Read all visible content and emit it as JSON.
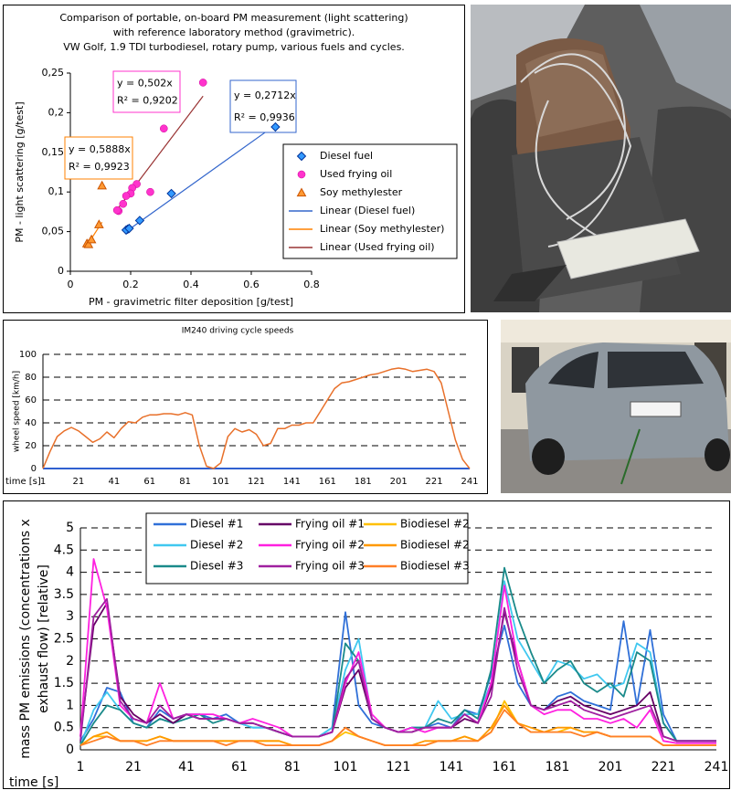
{
  "chart_data": [
    {
      "type": "scatter",
      "title": [
        "Comparison of portable, on-board PM measurement (light scattering)",
        "with reference laboratory method (gravimetric).",
        "VW Golf, 1.9 TDI turbodiesel, rotary pump, various fuels and cycles."
      ],
      "xlabel": "PM - gravimetric filter deposition [g/test]",
      "ylabel": "PM - light scattering [g/test]",
      "xlim": [
        0,
        0.8
      ],
      "xticks": [
        0,
        0.2,
        0.4,
        0.6,
        0.8
      ],
      "ylim": [
        0,
        0.25
      ],
      "yticks": [
        0,
        {
          "value": 0.05,
          "label": "0,05"
        },
        {
          "value": 0.1,
          "label": "0,1"
        },
        {
          "value": 0.15,
          "label": "0,15"
        },
        {
          "value": 0.2,
          "label": "0,2"
        },
        {
          "value": 0.25,
          "label": "0,25"
        }
      ],
      "grid": false,
      "legend": "right",
      "series": [
        {
          "name": "Diesel fuel",
          "color": "#3399ff",
          "marker": "diamond",
          "x": [
            0.68,
            0.335,
            0.23,
            0.19,
            0.185,
            0.195
          ],
          "y": [
            0.182,
            0.098,
            0.064,
            0.053,
            0.052,
            0.054
          ]
        },
        {
          "name": "Used frying oil",
          "color": "#ff33cc",
          "marker": "circle",
          "x": [
            0.44,
            0.31,
            0.265,
            0.22,
            0.205,
            0.2,
            0.185,
            0.16,
            0.155,
            0.175
          ],
          "y": [
            0.238,
            0.18,
            0.1,
            0.11,
            0.105,
            0.098,
            0.095,
            0.076,
            0.077,
            0.085
          ]
        },
        {
          "name": "Soy methylester",
          "color": "#ff9933",
          "marker": "triangle",
          "x": [
            0.055,
            0.06,
            0.07,
            0.095,
            0.105
          ],
          "y": [
            0.035,
            0.034,
            0.04,
            0.059,
            0.108
          ]
        }
      ],
      "trendlines": [
        {
          "name": "Linear (Diesel fuel)",
          "color": "#3366cc",
          "box_color": "#3366cc",
          "slope": 0.2712,
          "xlim": [
            0.185,
            0.68
          ],
          "equation": "y = 0,2712x",
          "r_squared": "R² = 0,9936"
        },
        {
          "name": "Linear (Soy methylester)",
          "color": "#ff8000",
          "box_color": "#ff8000",
          "slope": 0.5888,
          "xlim": [
            0.055,
            0.105
          ],
          "equation": "y = 0,5888x",
          "r_squared": "R² = 0,9923"
        },
        {
          "name": "Linear (Used frying oil)",
          "color": "#993333",
          "box_color": "#ff33cc",
          "slope": 0.502,
          "xlim": [
            0.155,
            0.44
          ],
          "equation": "y = 0,502x",
          "r_squared": "R² = 0,9202"
        }
      ]
    },
    {
      "type": "line",
      "title": "IM240 driving cycle speeds",
      "xlabel": "time [s]",
      "ylabel": "wheel speed [km/h]",
      "xlim": [
        1,
        241
      ],
      "xticks": [
        1,
        21,
        41,
        61,
        81,
        101,
        121,
        141,
        161,
        181,
        201,
        221,
        241
      ],
      "ylim": [
        0,
        100
      ],
      "yticks": [
        0,
        20,
        40,
        60,
        80,
        100
      ],
      "grid": true,
      "x": [
        1,
        5,
        9,
        13,
        17,
        21,
        25,
        29,
        33,
        37,
        41,
        45,
        49,
        53,
        57,
        61,
        65,
        69,
        73,
        77,
        81,
        85,
        89,
        93,
        97,
        101,
        105,
        109,
        113,
        117,
        121,
        125,
        129,
        133,
        137,
        141,
        145,
        149,
        153,
        157,
        161,
        165,
        169,
        173,
        177,
        181,
        185,
        189,
        193,
        197,
        201,
        205,
        209,
        213,
        217,
        221,
        225,
        229,
        233,
        237,
        241
      ],
      "series": [
        {
          "color": "#e8702a",
          "values": [
            0,
            15,
            28,
            33,
            36,
            33,
            28,
            23,
            26,
            32,
            27,
            35,
            41,
            40,
            45,
            47,
            47,
            48,
            48,
            47,
            49,
            47,
            20,
            2,
            0,
            5,
            28,
            35,
            32,
            34,
            30,
            20,
            22,
            35,
            35,
            38,
            38,
            40,
            40,
            50,
            60,
            70,
            75,
            76,
            78,
            80,
            82,
            83,
            85,
            87,
            88,
            87,
            85,
            86,
            87,
            85,
            75,
            50,
            25,
            8,
            0
          ]
        }
      ]
    },
    {
      "type": "line",
      "xlabel": "time [s]",
      "ylabel": [
        "mass PM emissions (concentrations x",
        "exhaust flow) [relative]"
      ],
      "xlim": [
        1,
        241
      ],
      "xticks": [
        1,
        21,
        41,
        61,
        81,
        101,
        121,
        141,
        161,
        181,
        201,
        221,
        241
      ],
      "ylim": [
        0,
        5
      ],
      "yticks": [
        0,
        0.5,
        1,
        1.5,
        2,
        2.5,
        3,
        3.5,
        4,
        4.5,
        5
      ],
      "grid": true,
      "legend": "top",
      "x": [
        1,
        6,
        11,
        16,
        21,
        26,
        31,
        36,
        41,
        46,
        51,
        56,
        61,
        66,
        71,
        76,
        81,
        86,
        91,
        96,
        101,
        106,
        111,
        116,
        121,
        126,
        131,
        136,
        141,
        146,
        151,
        156,
        161,
        166,
        171,
        176,
        181,
        186,
        191,
        196,
        201,
        206,
        211,
        216,
        221,
        226,
        231,
        236,
        241
      ],
      "series": [
        {
          "name": "Diesel #1",
          "color": "#3070d8",
          "values": [
            0.2,
            0.7,
            1.4,
            1.3,
            0.6,
            0.5,
            0.9,
            0.7,
            0.8,
            0.8,
            0.7,
            0.8,
            0.6,
            0.5,
            0.5,
            0.4,
            0.3,
            0.3,
            0.3,
            0.5,
            3.1,
            1.0,
            0.6,
            0.5,
            0.4,
            0.5,
            0.5,
            0.6,
            0.5,
            0.9,
            0.8,
            1.7,
            2.8,
            1.5,
            1.0,
            0.9,
            1.2,
            1.3,
            1.1,
            1.0,
            0.9,
            2.9,
            1.0,
            2.7,
            0.8,
            0.2,
            0.2,
            0.2,
            0.2
          ]
        },
        {
          "name": "Diesel #2",
          "color": "#40c8f0",
          "values": [
            0.1,
            0.9,
            1.3,
            0.9,
            0.6,
            0.5,
            0.7,
            0.6,
            0.8,
            0.7,
            0.7,
            0.7,
            0.6,
            0.5,
            0.5,
            0.4,
            0.3,
            0.3,
            0.3,
            0.5,
            1.8,
            2.5,
            0.7,
            0.5,
            0.4,
            0.5,
            0.5,
            1.1,
            0.7,
            0.8,
            0.8,
            1.5,
            3.8,
            2.5,
            2.0,
            1.5,
            2.0,
            1.9,
            1.6,
            1.7,
            1.4,
            1.5,
            2.4,
            2.2,
            0.6,
            0.2,
            0.2,
            0.2,
            0.2
          ]
        },
        {
          "name": "Diesel #3",
          "color": "#1a8a8a",
          "values": [
            0.1,
            0.6,
            1.0,
            0.9,
            0.6,
            0.5,
            0.7,
            0.6,
            0.7,
            0.8,
            0.6,
            0.7,
            0.6,
            0.6,
            0.5,
            0.4,
            0.3,
            0.3,
            0.3,
            0.4,
            2.4,
            2.0,
            0.7,
            0.5,
            0.4,
            0.5,
            0.5,
            0.7,
            0.6,
            0.9,
            0.7,
            1.8,
            4.1,
            3.0,
            2.2,
            1.5,
            1.8,
            2.0,
            1.5,
            1.3,
            1.5,
            1.2,
            2.2,
            2.0,
            0.6,
            0.2,
            0.2,
            0.2,
            0.2
          ]
        },
        {
          "name": "Frying oil #1",
          "color": "#660066",
          "values": [
            0.3,
            2.8,
            3.3,
            1.2,
            0.8,
            0.6,
            0.8,
            0.6,
            0.8,
            0.7,
            0.7,
            0.7,
            0.6,
            0.6,
            0.5,
            0.4,
            0.3,
            0.3,
            0.3,
            0.4,
            1.4,
            1.8,
            0.7,
            0.5,
            0.4,
            0.4,
            0.5,
            0.5,
            0.5,
            0.7,
            0.6,
            1.4,
            3.1,
            2.0,
            1.0,
            0.9,
            1.1,
            1.2,
            1.0,
            0.9,
            0.8,
            0.9,
            1.0,
            1.3,
            0.3,
            0.2,
            0.2,
            0.2,
            0.2
          ]
        },
        {
          "name": "Frying oil #2",
          "color": "#ff20e0",
          "values": [
            0.3,
            4.3,
            3.2,
            1.0,
            0.7,
            0.6,
            1.5,
            0.7,
            0.8,
            0.8,
            0.8,
            0.7,
            0.6,
            0.7,
            0.6,
            0.5,
            0.3,
            0.3,
            0.3,
            0.4,
            1.5,
            2.2,
            0.8,
            0.5,
            0.4,
            0.5,
            0.4,
            0.5,
            0.5,
            0.8,
            0.6,
            1.5,
            3.7,
            2.0,
            1.0,
            0.8,
            0.9,
            0.9,
            0.7,
            0.7,
            0.6,
            0.7,
            0.5,
            0.9,
            0.2,
            0.15,
            0.15,
            0.15,
            0.15
          ]
        },
        {
          "name": "Frying oil #3",
          "color": "#a020a0",
          "values": [
            0.2,
            3.0,
            3.4,
            1.1,
            0.7,
            0.6,
            1.0,
            0.7,
            0.8,
            0.7,
            0.7,
            0.7,
            0.6,
            0.6,
            0.5,
            0.4,
            0.3,
            0.3,
            0.3,
            0.4,
            1.6,
            2.0,
            0.7,
            0.5,
            0.4,
            0.4,
            0.5,
            0.5,
            0.5,
            0.8,
            0.6,
            1.2,
            3.2,
            1.8,
            1.0,
            0.9,
            1.0,
            1.1,
            0.9,
            0.8,
            0.7,
            0.8,
            0.9,
            1.0,
            0.3,
            0.2,
            0.2,
            0.2,
            0.2
          ]
        },
        {
          "name": "Biodiesel #2",
          "color": "#ffc000",
          "values": [
            0.1,
            0.3,
            0.3,
            0.2,
            0.2,
            0.2,
            0.3,
            0.2,
            0.2,
            0.2,
            0.2,
            0.2,
            0.2,
            0.2,
            0.2,
            0.2,
            0.1,
            0.1,
            0.1,
            0.2,
            0.4,
            0.3,
            0.2,
            0.1,
            0.1,
            0.1,
            0.1,
            0.2,
            0.2,
            0.3,
            0.2,
            0.4,
            1.1,
            0.6,
            0.4,
            0.4,
            0.4,
            0.5,
            0.4,
            0.4,
            0.3,
            0.3,
            0.3,
            0.3,
            0.1,
            0.1,
            0.1,
            0.1,
            0.1
          ]
        },
        {
          "name": "Biodiesel #2",
          "color": "#ff9900",
          "values": [
            0.1,
            0.3,
            0.4,
            0.2,
            0.2,
            0.2,
            0.3,
            0.2,
            0.2,
            0.2,
            0.2,
            0.2,
            0.2,
            0.2,
            0.2,
            0.2,
            0.1,
            0.1,
            0.1,
            0.2,
            0.5,
            0.3,
            0.2,
            0.1,
            0.1,
            0.1,
            0.2,
            0.2,
            0.2,
            0.3,
            0.2,
            0.5,
            1.0,
            0.6,
            0.5,
            0.4,
            0.5,
            0.5,
            0.4,
            0.4,
            0.3,
            0.3,
            0.3,
            0.3,
            0.1,
            0.1,
            0.1,
            0.1,
            0.1
          ]
        },
        {
          "name": "Biodiesel #3",
          "color": "#ff7f27",
          "values": [
            0.1,
            0.2,
            0.3,
            0.2,
            0.2,
            0.1,
            0.2,
            0.2,
            0.2,
            0.2,
            0.2,
            0.1,
            0.2,
            0.2,
            0.1,
            0.1,
            0.1,
            0.1,
            0.1,
            0.2,
            0.5,
            0.3,
            0.2,
            0.1,
            0.1,
            0.1,
            0.1,
            0.2,
            0.2,
            0.2,
            0.2,
            0.4,
            0.9,
            0.6,
            0.4,
            0.4,
            0.4,
            0.4,
            0.3,
            0.4,
            0.3,
            0.3,
            0.3,
            0.3,
            0.1,
            0.1,
            0.1,
            0.1,
            0.1
          ]
        }
      ]
    }
  ]
}
